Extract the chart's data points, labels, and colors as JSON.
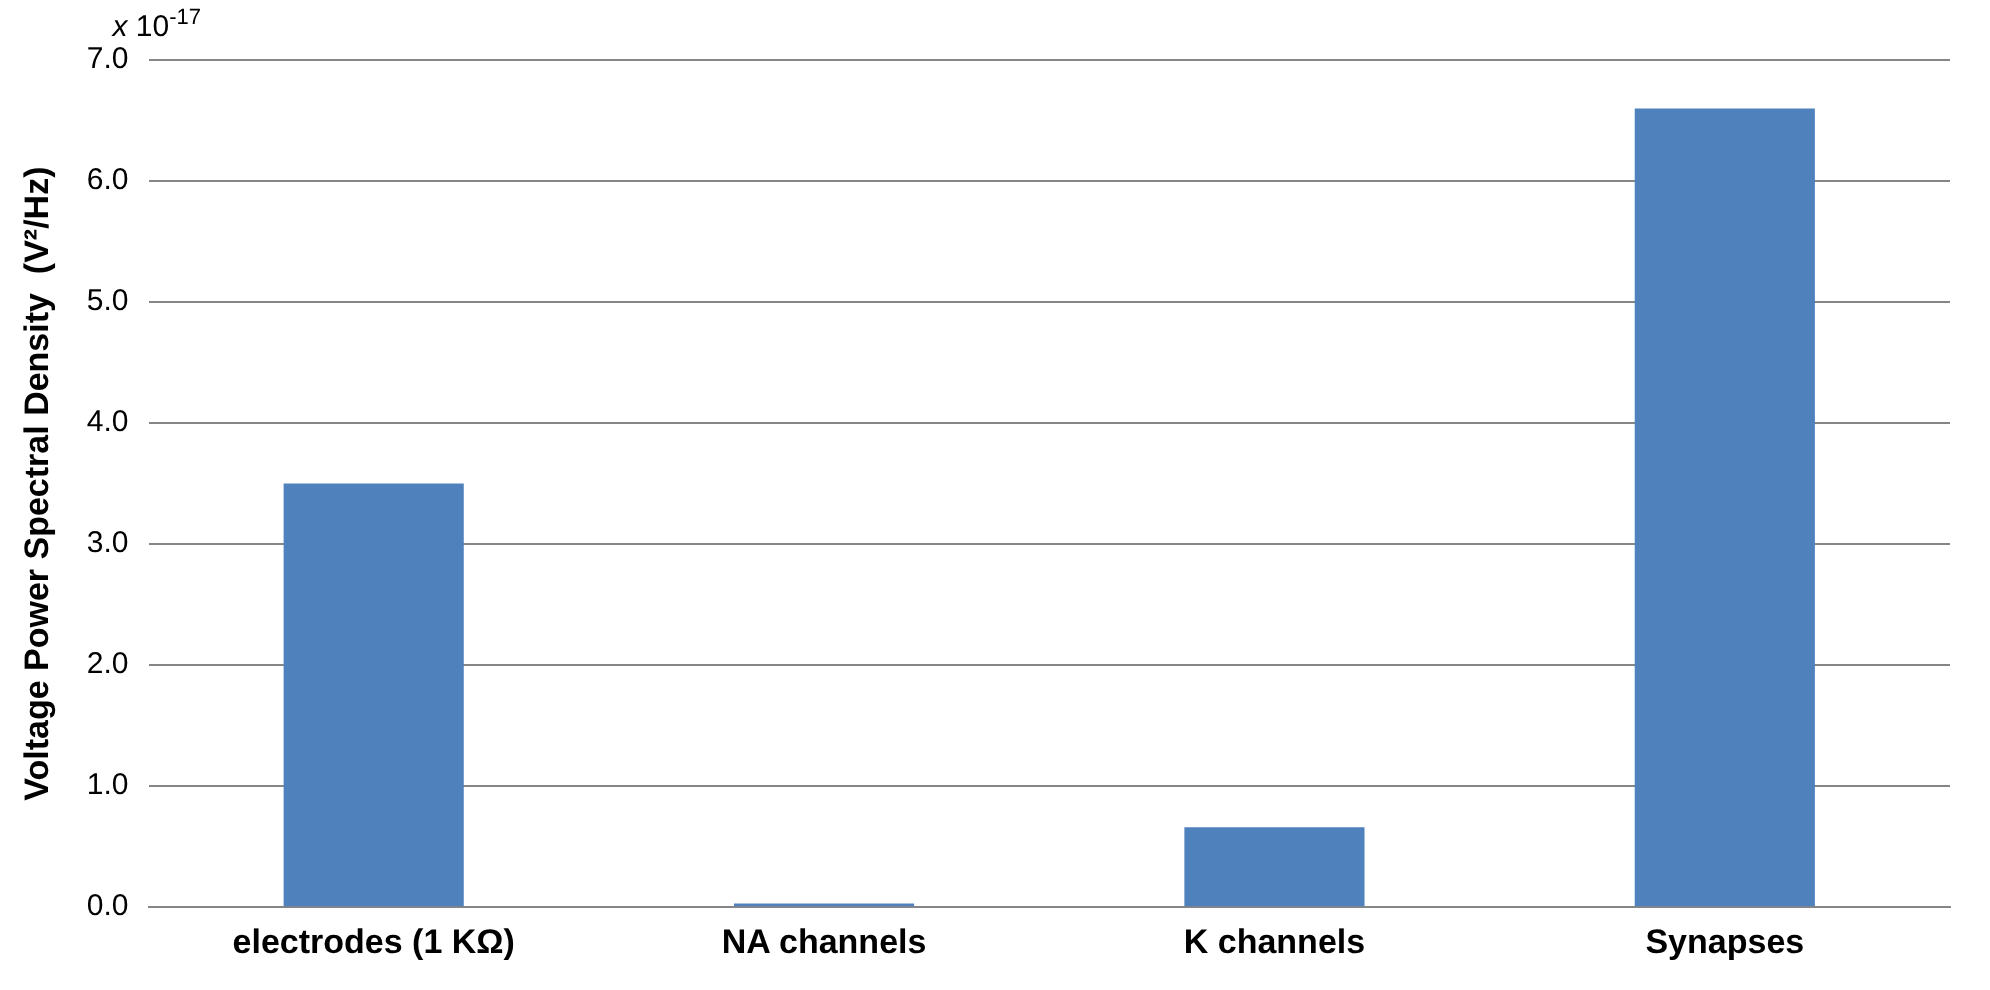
{
  "chart_data": {
    "type": "bar",
    "ylabel": "Voltage Power Spectral Density  (V²/Hz)",
    "categories": [
      "electrodes (1 KΩ)",
      "NA channels",
      "K channels",
      "Synapses"
    ],
    "values": [
      3.5,
      0.03,
      0.66,
      6.6
    ],
    "color": "#4f81bd",
    "ylim": [
      0,
      7
    ],
    "yticks": [
      {
        "value": 0,
        "label": "0.0"
      },
      {
        "value": 1,
        "label": "1.0"
      },
      {
        "value": 2,
        "label": "2.0"
      },
      {
        "value": 3,
        "label": "3.0"
      },
      {
        "value": 4,
        "label": "4.0"
      },
      {
        "value": 5,
        "label": "5.0"
      },
      {
        "value": 6,
        "label": "6.0"
      },
      {
        "value": 7,
        "label": "7.0"
      }
    ],
    "grid": "y",
    "annotations": [
      "x 10$^{-17}$"
    ]
  }
}
